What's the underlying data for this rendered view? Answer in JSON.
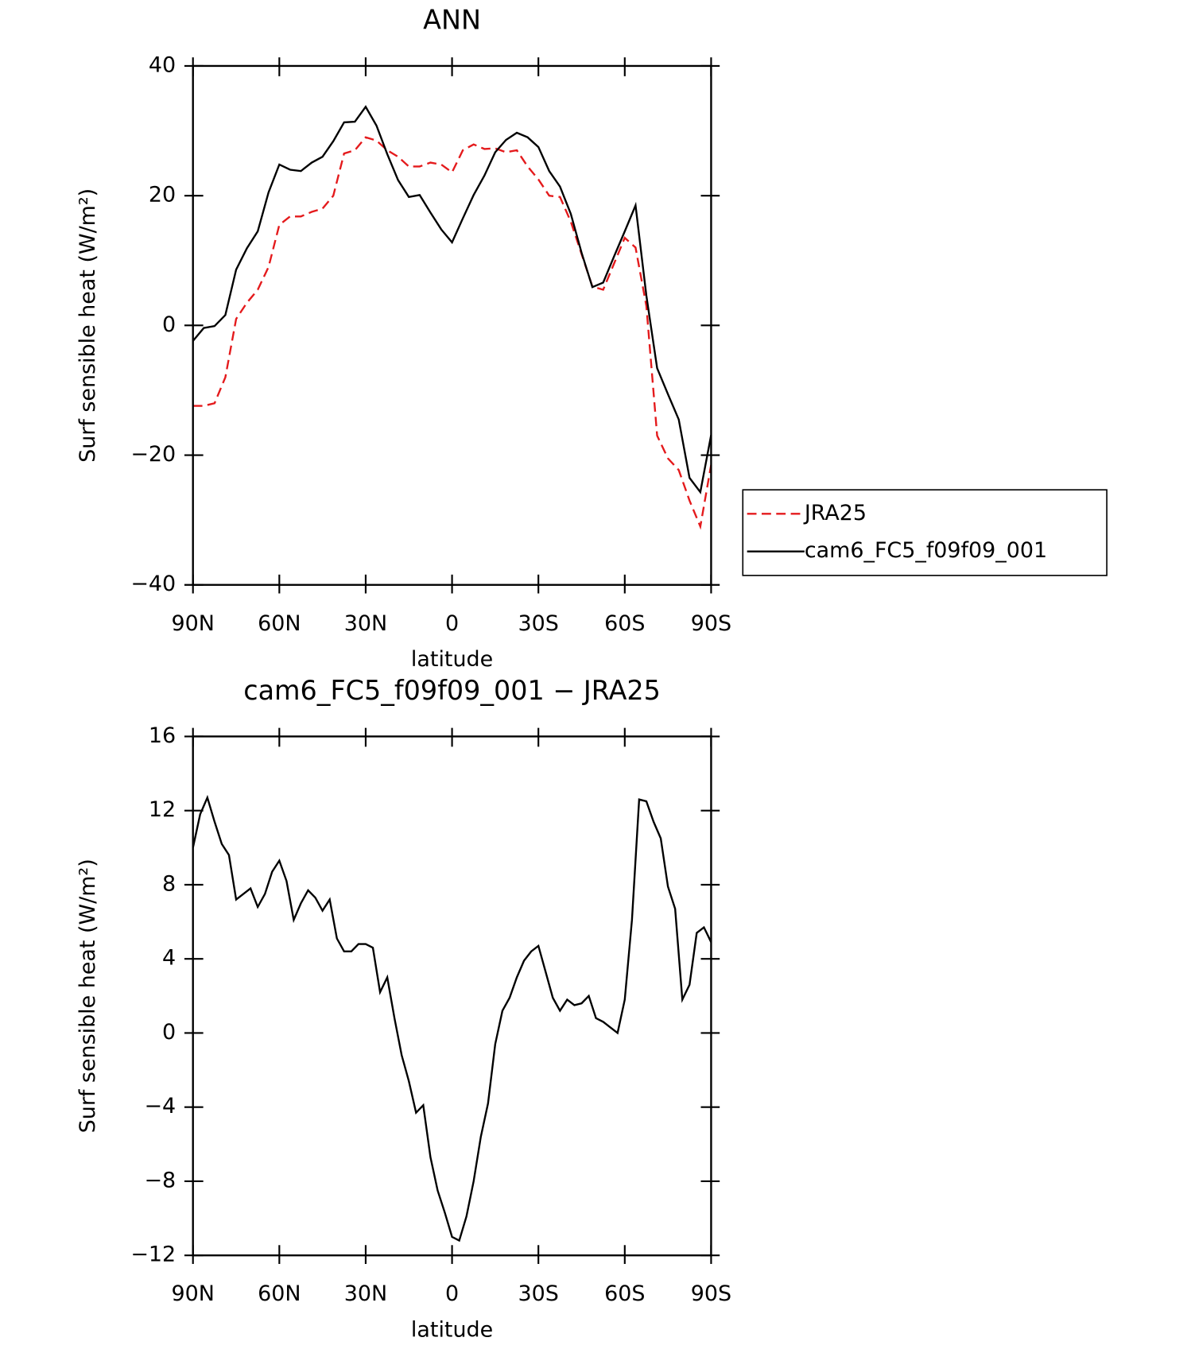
{
  "chart_data": [
    {
      "type": "line",
      "title": "ANN",
      "xlabel": "latitude",
      "ylabel": "Surf sensible heat (W/m²)",
      "xlim": [
        90,
        -90
      ],
      "xticks": [
        {
          "value": 90,
          "label": "90N"
        },
        {
          "value": 60,
          "label": "60N"
        },
        {
          "value": 30,
          "label": "30N"
        },
        0,
        {
          "value": -30,
          "label": "30S"
        },
        {
          "value": -60,
          "label": "60S"
        },
        {
          "value": -90,
          "label": "90S"
        }
      ],
      "ylim": [
        -40,
        40
      ],
      "yticks": [
        {
          "value": -40,
          "label": "−40"
        },
        {
          "value": -20,
          "label": "−20"
        },
        0,
        20,
        40
      ],
      "legend": "right",
      "x": [
        90,
        86.25,
        82.5,
        78.75,
        75,
        71.25,
        67.5,
        63.75,
        60,
        56.25,
        52.5,
        48.75,
        45,
        41.25,
        37.5,
        33.75,
        30,
        26.25,
        22.5,
        18.75,
        15,
        11.25,
        7.5,
        3.75,
        0,
        -3.75,
        -7.5,
        -11.25,
        -15,
        -18.75,
        -22.5,
        -26.25,
        -30,
        -33.75,
        -37.5,
        -41.25,
        -45,
        -48.75,
        -52.5,
        -56.25,
        -60,
        -63.75,
        -67.5,
        -71.25,
        -75,
        -78.75,
        -82.5,
        -86.25,
        -90
      ],
      "series": [
        {
          "name": "JRA25",
          "color": "#e41a1c",
          "dash": true,
          "values": [
            -12.4,
            -12.4,
            -12.0,
            -8.0,
            1.0,
            3.5,
            5.5,
            9.0,
            15.5,
            16.8,
            16.8,
            17.5,
            18.0,
            20.0,
            26.5,
            27.0,
            29.0,
            28.5,
            27.0,
            26.0,
            24.5,
            24.5,
            25.1,
            24.8,
            23.6,
            27.0,
            27.9,
            27.2,
            27.3,
            26.7,
            27.0,
            24.5,
            22.5,
            20.0,
            19.8,
            16.0,
            11.0,
            6.0,
            5.5,
            9.5,
            13.5,
            12.0,
            3.0,
            -17.0,
            -20.5,
            -22.3,
            -27.0,
            -31.0,
            -21.5
          ]
        },
        {
          "name": "cam6_FC5_f09f09_001",
          "color": "#000000",
          "dash": false,
          "values": [
            -2.4,
            -0.4,
            -0.1,
            1.6,
            8.6,
            11.9,
            14.5,
            20.5,
            24.8,
            24.0,
            23.8,
            25.1,
            26.0,
            28.4,
            31.3,
            31.4,
            33.7,
            30.8,
            26.4,
            22.4,
            19.8,
            20.1,
            17.4,
            14.8,
            12.8,
            16.5,
            20.1,
            23.1,
            26.7,
            28.6,
            29.7,
            29.0,
            27.5,
            23.8,
            21.4,
            17.2,
            11.2,
            5.9,
            6.6,
            10.6,
            14.5,
            18.5,
            4.6,
            -6.6,
            -10.6,
            -14.5,
            -23.5,
            -25.7,
            -16.9
          ]
        }
      ]
    },
    {
      "type": "line",
      "title": "cam6_FC5_f09f09_001 − JRA25",
      "xlabel": "latitude",
      "ylabel": "Surf sensible heat (W/m²)",
      "xlim": [
        90,
        -90
      ],
      "xticks": [
        {
          "value": 90,
          "label": "90N"
        },
        {
          "value": 60,
          "label": "60N"
        },
        {
          "value": 30,
          "label": "30N"
        },
        0,
        {
          "value": -30,
          "label": "30S"
        },
        {
          "value": -60,
          "label": "60S"
        },
        {
          "value": -90,
          "label": "90S"
        }
      ],
      "ylim": [
        -12,
        16
      ],
      "yticks": [
        {
          "value": -12,
          "label": "−12"
        },
        {
          "value": -8,
          "label": "−8"
        },
        {
          "value": -4,
          "label": "−4"
        },
        0,
        4,
        8,
        12,
        16
      ],
      "x": [
        90,
        87.5,
        85,
        82.5,
        80,
        77.5,
        75,
        72.5,
        70,
        67.5,
        65,
        62.5,
        60,
        57.5,
        55,
        52.5,
        50,
        47.5,
        45,
        42.5,
        40,
        37.5,
        35,
        32.5,
        30,
        27.5,
        25,
        22.5,
        20,
        17.5,
        15,
        12.5,
        10,
        7.5,
        5,
        2.5,
        0,
        -2.5,
        -5,
        -7.5,
        -10,
        -12.5,
        -15,
        -17.5,
        -20,
        -22.5,
        -25,
        -27.5,
        -30,
        -32.5,
        -35,
        -37.5,
        -40,
        -42.5,
        -45,
        -47.5,
        -50,
        -52.5,
        -55,
        -57.5,
        -60,
        -62.5,
        -65,
        -67.5,
        -70,
        -72.5,
        -75,
        -77.5,
        -80,
        -82.5,
        -85,
        -87.5,
        -90
      ],
      "series": [
        {
          "color": "#000000",
          "values": [
            10.0,
            11.8,
            12.7,
            11.4,
            10.2,
            9.6,
            7.2,
            7.5,
            7.8,
            6.8,
            7.5,
            8.7,
            9.3,
            8.2,
            6.1,
            7.0,
            7.7,
            7.3,
            6.6,
            7.2,
            5.1,
            4.4,
            4.4,
            4.8,
            4.8,
            4.6,
            2.2,
            3.0,
            0.8,
            -1.2,
            -2.6,
            -4.3,
            -3.9,
            -6.7,
            -8.5,
            -9.7,
            -11.0,
            -11.2,
            -9.9,
            -8.0,
            -5.6,
            -3.8,
            -0.6,
            1.2,
            1.9,
            3.0,
            3.9,
            4.4,
            4.7,
            3.3,
            1.9,
            1.2,
            1.8,
            1.5,
            1.6,
            2.0,
            0.8,
            0.6,
            0.3,
            0.0,
            1.8,
            6.1,
            12.6,
            12.5,
            11.4,
            10.5,
            7.9,
            6.7,
            1.8,
            2.6,
            5.4,
            5.7,
            4.9
          ]
        }
      ]
    }
  ]
}
